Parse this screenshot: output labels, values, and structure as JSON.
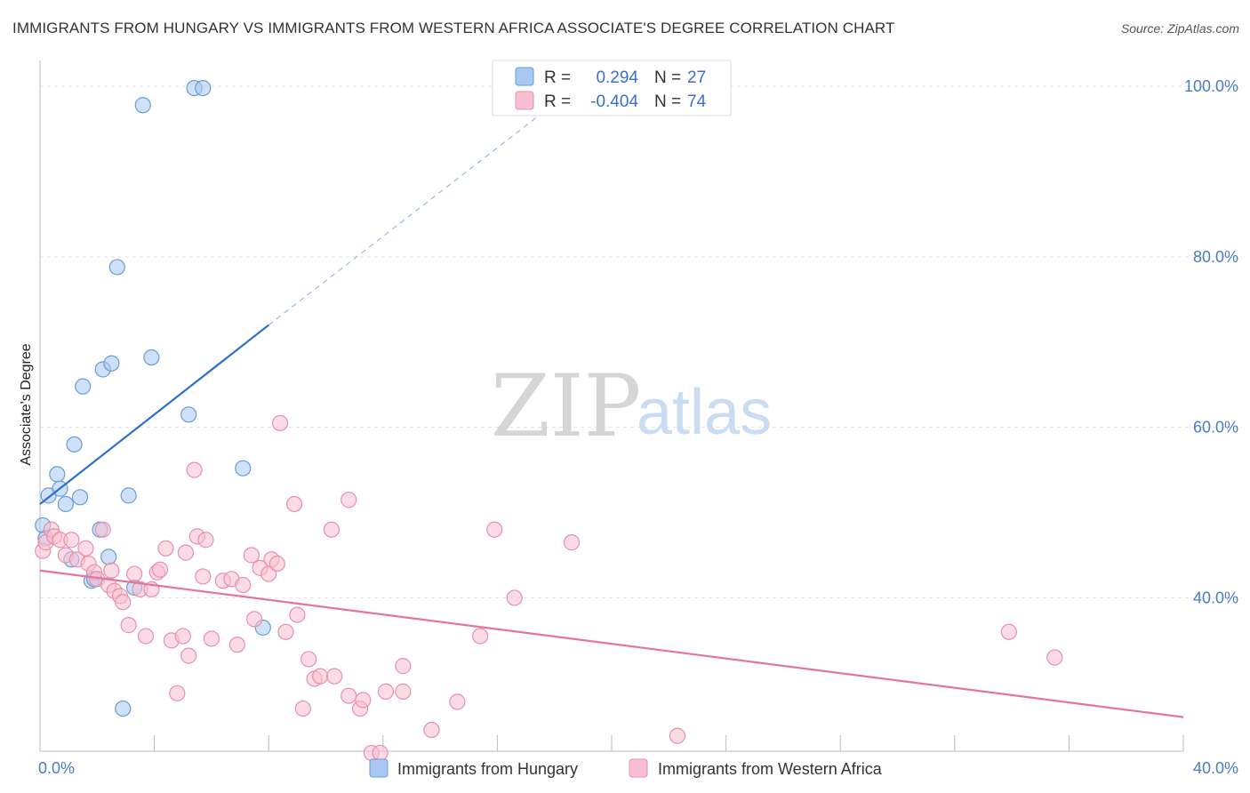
{
  "title": "IMMIGRANTS FROM HUNGARY VS IMMIGRANTS FROM WESTERN AFRICA ASSOCIATE'S DEGREE CORRELATION CHART",
  "source": "Source: ZipAtlas.com",
  "watermark": {
    "zip": "ZIP",
    "atlas": "atlas"
  },
  "legend_top": [
    {
      "r_label": "R =",
      "r_value": "0.294",
      "n_label": "N =",
      "n_value": "27",
      "color": "#a8c8f0",
      "stroke": "#6b9bd8"
    },
    {
      "r_label": "R =",
      "r_value": "-0.404",
      "n_label": "N =",
      "n_value": "74",
      "color": "#f7c0d0",
      "stroke": "#e890a8"
    }
  ],
  "legend_bottom": [
    {
      "label": "Immigrants from Hungary",
      "color": "#a8c8f0",
      "stroke": "#6b9bd8"
    },
    {
      "label": "Immigrants from Western Africa",
      "color": "#f7c0d0",
      "stroke": "#e890a8"
    }
  ],
  "chart_data": {
    "type": "scatter",
    "title": "IMMIGRANTS FROM HUNGARY VS IMMIGRANTS FROM WESTERN AFRICA ASSOCIATE'S DEGREE CORRELATION CHART",
    "xlabel": "",
    "ylabel": "Associate's Degree",
    "xlim": [
      0,
      40
    ],
    "ylim": [
      22,
      102
    ],
    "x_tick_labels": [
      {
        "value": 0,
        "label": "0.0%"
      },
      {
        "value": 40,
        "label": "40.0%"
      }
    ],
    "y_tick_labels": [
      {
        "value": 100,
        "label": "100.0%"
      },
      {
        "value": 80,
        "label": "80.0%"
      },
      {
        "value": 60,
        "label": "60.0%"
      },
      {
        "value": 40,
        "label": "40.0%"
      }
    ],
    "grid": true,
    "legend_position": "top-center",
    "series": [
      {
        "name": "Immigrants from Hungary",
        "color": "#a8c8f0",
        "stroke": "#6b9bd8",
        "trend": {
          "x": [
            0,
            8
          ],
          "y": [
            51.0,
            72.0
          ],
          "extended_x": [
            8,
            18
          ],
          "extended_y": [
            72.0,
            98.0
          ],
          "color": "#2f6fcf"
        },
        "points": [
          [
            0.1,
            48.5
          ],
          [
            0.3,
            52.0
          ],
          [
            0.6,
            54.5
          ],
          [
            0.7,
            52.8
          ],
          [
            0.9,
            51.0
          ],
          [
            1.1,
            44.5
          ],
          [
            1.2,
            58.0
          ],
          [
            1.4,
            51.8
          ],
          [
            1.5,
            64.8
          ],
          [
            1.8,
            42.0
          ],
          [
            1.9,
            42.2
          ],
          [
            2.1,
            48.0
          ],
          [
            2.2,
            66.8
          ],
          [
            2.4,
            44.8
          ],
          [
            2.5,
            67.5
          ],
          [
            2.7,
            78.8
          ],
          [
            2.9,
            27.0
          ],
          [
            3.1,
            52.0
          ],
          [
            3.3,
            41.2
          ],
          [
            3.6,
            97.8
          ],
          [
            3.9,
            68.2
          ],
          [
            5.2,
            61.5
          ],
          [
            5.4,
            99.8
          ],
          [
            5.7,
            99.8
          ],
          [
            7.1,
            55.2
          ],
          [
            7.8,
            36.5
          ],
          [
            0.2,
            47.0
          ]
        ]
      },
      {
        "name": "Immigrants from Western Africa",
        "color": "#f7c0d0",
        "stroke": "#e890a8",
        "trend": {
          "x": [
            0,
            40
          ],
          "y": [
            43.2,
            26.0
          ],
          "color": "#e6739d"
        },
        "points": [
          [
            0.1,
            45.5
          ],
          [
            0.2,
            46.5
          ],
          [
            0.4,
            48.0
          ],
          [
            0.5,
            47.2
          ],
          [
            0.7,
            46.8
          ],
          [
            0.9,
            45.0
          ],
          [
            1.1,
            46.8
          ],
          [
            1.3,
            44.5
          ],
          [
            1.6,
            45.8
          ],
          [
            1.7,
            44.0
          ],
          [
            1.9,
            43.0
          ],
          [
            2.0,
            42.2
          ],
          [
            2.2,
            48.0
          ],
          [
            2.4,
            41.5
          ],
          [
            2.5,
            43.2
          ],
          [
            2.6,
            40.8
          ],
          [
            2.8,
            40.2
          ],
          [
            2.9,
            39.5
          ],
          [
            3.1,
            36.8
          ],
          [
            3.3,
            42.8
          ],
          [
            3.5,
            41.0
          ],
          [
            3.7,
            35.5
          ],
          [
            3.9,
            41.0
          ],
          [
            4.1,
            43.0
          ],
          [
            4.2,
            43.3
          ],
          [
            4.4,
            45.8
          ],
          [
            4.6,
            35.0
          ],
          [
            4.8,
            28.8
          ],
          [
            5.0,
            35.5
          ],
          [
            5.1,
            45.3
          ],
          [
            5.2,
            33.2
          ],
          [
            5.4,
            55.0
          ],
          [
            5.5,
            47.2
          ],
          [
            5.7,
            42.5
          ],
          [
            5.8,
            46.8
          ],
          [
            6.0,
            35.2
          ],
          [
            6.4,
            42.0
          ],
          [
            6.7,
            42.2
          ],
          [
            6.9,
            34.5
          ],
          [
            7.1,
            41.5
          ],
          [
            7.4,
            45.0
          ],
          [
            7.5,
            37.5
          ],
          [
            7.7,
            43.5
          ],
          [
            8.0,
            42.8
          ],
          [
            8.1,
            44.5
          ],
          [
            8.3,
            44.0
          ],
          [
            8.4,
            60.5
          ],
          [
            8.6,
            36.0
          ],
          [
            8.9,
            51.0
          ],
          [
            9.0,
            38.0
          ],
          [
            9.2,
            27.0
          ],
          [
            9.4,
            32.8
          ],
          [
            9.6,
            30.5
          ],
          [
            9.8,
            30.8
          ],
          [
            10.2,
            48.0
          ],
          [
            10.3,
            30.8
          ],
          [
            10.8,
            51.5
          ],
          [
            10.8,
            28.5
          ],
          [
            11.2,
            27.0
          ],
          [
            11.3,
            28.0
          ],
          [
            11.6,
            21.8
          ],
          [
            11.9,
            21.8
          ],
          [
            12.1,
            29.0
          ],
          [
            12.7,
            32.0
          ],
          [
            12.7,
            29.0
          ],
          [
            13.7,
            24.5
          ],
          [
            14.6,
            27.8
          ],
          [
            15.4,
            35.5
          ],
          [
            15.9,
            48.0
          ],
          [
            16.6,
            40.0
          ],
          [
            18.6,
            46.5
          ],
          [
            22.3,
            23.8
          ],
          [
            33.9,
            36.0
          ],
          [
            35.5,
            33.0
          ]
        ]
      }
    ]
  }
}
